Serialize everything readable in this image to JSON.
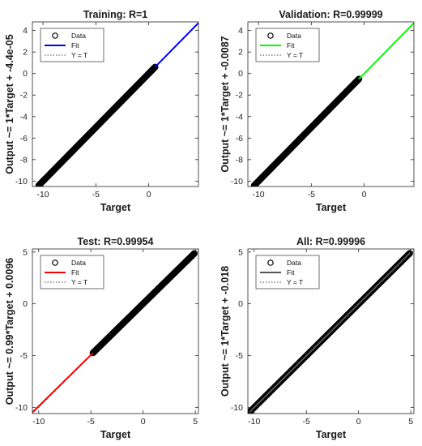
{
  "chart_data": [
    {
      "type": "scatter",
      "title": "Training: R=1",
      "xlabel": "Target",
      "ylabel": "Output ~= 1*Target + -4.4e-05",
      "xlim": [
        -11,
        4.7
      ],
      "ylim": [
        -10.5,
        4.8
      ],
      "xticks": [
        -10,
        -5,
        0
      ],
      "xtick_labels": [
        "-10",
        "-5",
        "0"
      ],
      "yticks": [
        -10,
        -8,
        -6,
        -4,
        -2,
        0,
        2,
        4
      ],
      "ytick_labels": [
        "-10",
        "-8",
        "-6",
        "-4",
        "-2",
        "0",
        "2",
        "4"
      ],
      "data_x_range": [
        -10.4,
        0.6
      ],
      "fit": {
        "slope": 1,
        "intercept": -4.4e-05,
        "color": "#0000ff",
        "x_from": 0.6,
        "x_to": 4.7
      },
      "ideal_line": {
        "slope": 1,
        "intercept": 0
      },
      "legend": [
        {
          "label": "Data",
          "marker": "circle"
        },
        {
          "label": "Fit",
          "color": "#0000ff"
        },
        {
          "label": "Y = T",
          "style": "dotted"
        }
      ],
      "legend_position": "top-left"
    },
    {
      "type": "scatter",
      "title": "Validation: R=0.99999",
      "xlabel": "Target",
      "ylabel": "Output ~= 1*Target + -0.0087",
      "xlim": [
        -11,
        4.7
      ],
      "ylim": [
        -10.5,
        4.8
      ],
      "xticks": [
        -10,
        -5,
        0
      ],
      "xtick_labels": [
        "-10",
        "-5",
        "0"
      ],
      "yticks": [
        -10,
        -8,
        -6,
        -4,
        -2,
        0,
        2,
        4
      ],
      "ytick_labels": [
        "-10",
        "-8",
        "-6",
        "-4",
        "-2",
        "0",
        "2",
        "4"
      ],
      "data_x_range": [
        -10.4,
        -0.5
      ],
      "fit": {
        "slope": 1,
        "intercept": -0.0087,
        "color": "#00ff00",
        "x_from": -0.5,
        "x_to": 4.7
      },
      "ideal_line": {
        "slope": 1,
        "intercept": 0
      },
      "legend": [
        {
          "label": "Data",
          "marker": "circle"
        },
        {
          "label": "Fit",
          "color": "#00ff00"
        },
        {
          "label": "Y = T",
          "style": "dotted"
        }
      ],
      "legend_position": "top-left"
    },
    {
      "type": "scatter",
      "title": "Test: R=0.99954",
      "xlabel": "Target",
      "ylabel": "Output ~= 0.99*Target + 0.0096",
      "xlim": [
        -10.6,
        5.3
      ],
      "ylim": [
        -10.6,
        5.3
      ],
      "xticks": [
        -10,
        -5,
        0,
        5
      ],
      "xtick_labels": [
        "-10",
        "-5",
        "0",
        "5"
      ],
      "yticks": [
        -10,
        -5,
        0,
        5
      ],
      "ytick_labels": [
        "-10",
        "-5",
        "0",
        "5"
      ],
      "data_x_range": [
        -4.8,
        4.9
      ],
      "fit": {
        "slope": 0.99,
        "intercept": 0.0096,
        "color": "#ff0000",
        "x_from": -10.6,
        "x_to": -4.8
      },
      "ideal_line": {
        "slope": 1,
        "intercept": 0
      },
      "legend": [
        {
          "label": "Data",
          "marker": "circle"
        },
        {
          "label": "Fit",
          "color": "#ff0000"
        },
        {
          "label": "Y = T",
          "style": "dotted"
        }
      ],
      "legend_position": "top-left"
    },
    {
      "type": "scatter",
      "title": "All: R=0.99996",
      "xlabel": "Target",
      "ylabel": "Output ~= 1*Target + -0.018",
      "xlim": [
        -10.6,
        5.3
      ],
      "ylim": [
        -10.6,
        5.3
      ],
      "xticks": [
        -10,
        -5,
        0,
        5
      ],
      "xtick_labels": [
        "-10",
        "-5",
        "0",
        "5"
      ],
      "yticks": [
        -10,
        -5,
        0,
        5
      ],
      "ytick_labels": [
        "-10",
        "-5",
        "0",
        "5"
      ],
      "data_x_range": [
        -10.4,
        4.9
      ],
      "fit": {
        "slope": 1,
        "intercept": -0.018,
        "color": "#555555",
        "x_from": -10.4,
        "x_to": 4.9
      },
      "ideal_line": {
        "slope": 1,
        "intercept": 0
      },
      "legend": [
        {
          "label": "Data",
          "marker": "circle"
        },
        {
          "label": "Fit",
          "color": "#555555"
        },
        {
          "label": "Y = T",
          "style": "dotted"
        }
      ],
      "legend_position": "top-left"
    }
  ]
}
